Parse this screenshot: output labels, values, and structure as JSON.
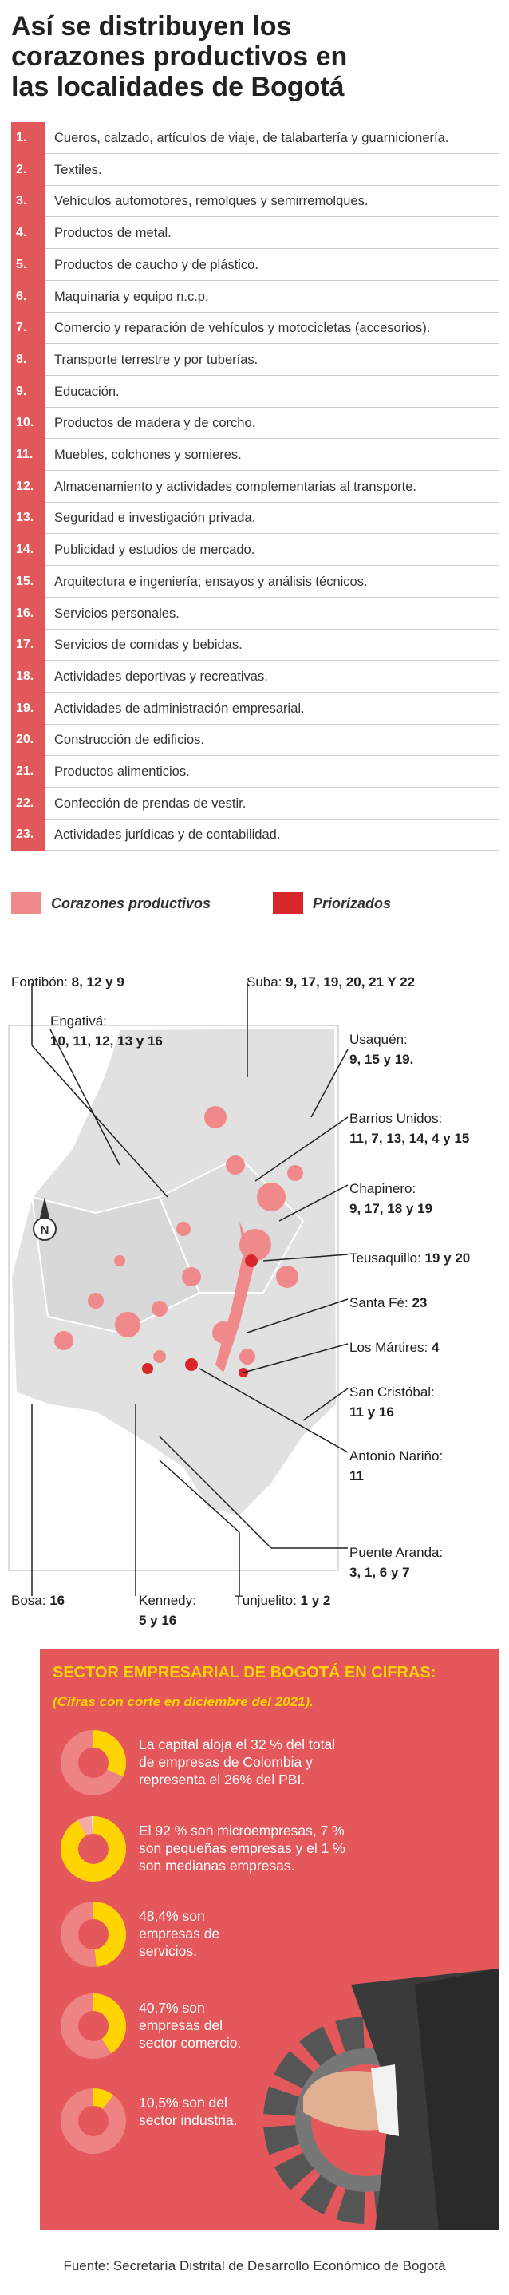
{
  "header": {
    "title": "Así se distribuyen los corazones productivos en las localidades de Bogotá"
  },
  "sectors": [
    {
      "number": "1.",
      "label": "Cueros, calzado, artículos de viaje, de talabartería y guarnicionería."
    },
    {
      "number": "2.",
      "label": "Textiles."
    },
    {
      "number": "3.",
      "label": "Vehículos automotores, remolques y semirremolques."
    },
    {
      "number": "4.",
      "label": "Productos de metal."
    },
    {
      "number": "5.",
      "label": "Productos de caucho y de plástico."
    },
    {
      "number": "6.",
      "label": "Maquinaria y equipo n.c.p."
    },
    {
      "number": "7.",
      "label": "Comercio y reparación de vehículos y motocicletas (accesorios)."
    },
    {
      "number": "8.",
      "label": "Transporte terrestre y por tuberías."
    },
    {
      "number": "9.",
      "label": "Educación."
    },
    {
      "number": "10.",
      "label": "Productos de madera y de corcho."
    },
    {
      "number": "11.",
      "label": "Muebles, colchones y somieres."
    },
    {
      "number": "12.",
      "label": "Almacenamiento y actividades complementarias al transporte."
    },
    {
      "number": "13.",
      "label": "Seguridad e investigación privada."
    },
    {
      "number": "14.",
      "label": "Publicidad y estudios de mercado."
    },
    {
      "number": "15.",
      "label": "Arquitectura e ingeniería; ensayos y análisis técnicos."
    },
    {
      "number": "16.",
      "label": "Servicios personales."
    },
    {
      "number": "17.",
      "label": "Servicios de comidas y bebidas."
    },
    {
      "number": "18.",
      "label": "Actividades deportivas y recreativas."
    },
    {
      "number": "19.",
      "label": "Actividades de administración empresarial."
    },
    {
      "number": "20.",
      "label": "Construcción de edificios."
    },
    {
      "number": "21.",
      "label": "Productos alimenticios."
    },
    {
      "number": "22.",
      "label": "Confección de prendas de vestir."
    },
    {
      "number": "23.",
      "label": "Actividades jurídicas y de contabilidad."
    }
  ],
  "legend": [
    "Corazones productivos",
    "Priorizados"
  ],
  "map": {
    "compass": "N",
    "localities": [
      {
        "name": "Fontibón:",
        "sectors": "8, 12 y 9"
      },
      {
        "name": "Engativá:",
        "sectors": "10, 11, 12, 13 y 16"
      },
      {
        "name": "Suba:",
        "sectors": "9, 17, 19, 20, 21 Y 22"
      },
      {
        "name": "Usaquén:",
        "sectors": "9, 15 y 19."
      },
      {
        "name": "Barrios Unidos:",
        "sectors": "11, 7, 13, 14, 4 y 15"
      },
      {
        "name": "Chapinero:",
        "sectors": "9, 17, 18 y 19"
      },
      {
        "name": "Teusaquillo:",
        "sectors": "19 y 20"
      },
      {
        "name": "Santa Fé:",
        "sectors": "23"
      },
      {
        "name": "Los Mártires:",
        "sectors": "4"
      },
      {
        "name": "San Cristóbal:",
        "sectors": "11 y 16"
      },
      {
        "name": "Antonio Nariño:",
        "sectors": "11"
      },
      {
        "name": "Puente Aranda:",
        "sectors": "3, 1, 6 y 7"
      },
      {
        "name": "Bosa:",
        "sectors": "16"
      },
      {
        "name": "Kennedy:",
        "sectors": "5 y 16"
      },
      {
        "name": "Tunjuelito:",
        "sectors": "1 y 2"
      }
    ]
  },
  "stats": {
    "title": "SECTOR EMPRESARIAL DE BOGOTÁ EN CIFRAS:",
    "subtitle": "(Cifras con corte en diciembre del 2021).",
    "items": [
      {
        "text": "La capital aloja el 32 % del total de empresas de Colombia y representa el 26% del PBI.",
        "values": [
          32
        ]
      },
      {
        "text": "El 92 % son microempresas, 7 % son pequeñas empresas y el 1 % son medianas empresas.",
        "values": [
          92,
          7,
          1
        ]
      },
      {
        "text": "48,4% son empresas de servicios.",
        "values": [
          48.4
        ]
      },
      {
        "text": "40,7% son empresas del sector comercio.",
        "values": [
          40.7
        ]
      },
      {
        "text": "10,5% son del sector industria.",
        "values": [
          10.5
        ]
      }
    ]
  },
  "source": "Fuente: Secretaría Distrital de Desarrollo Económico de Bogotá"
}
